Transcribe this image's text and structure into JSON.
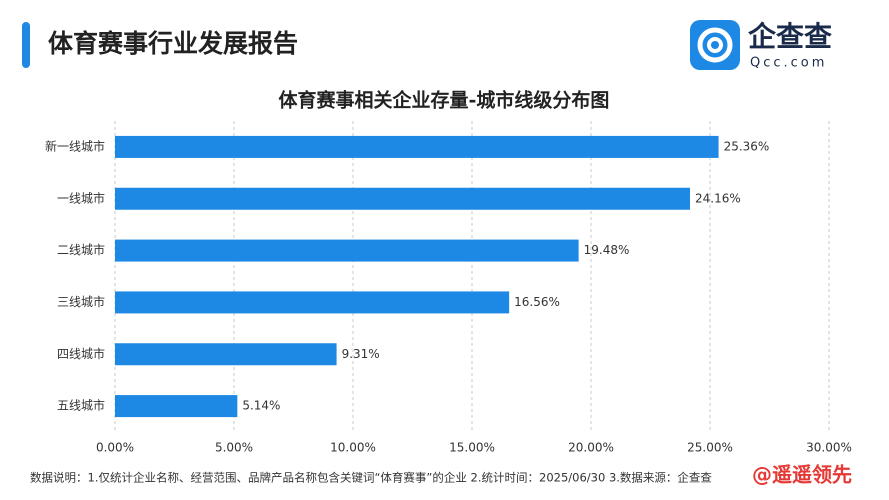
{
  "header": {
    "title": "体育赛事行业发展报告",
    "logo_text": "企查查",
    "logo_sub": "Qcc.com"
  },
  "chart_data": {
    "type": "bar",
    "orientation": "horizontal",
    "title": "体育赛事相关企业存量-城市线级分布图",
    "categories": [
      "新一线城市",
      "一线城市",
      "二线城市",
      "三线城市",
      "四线城市",
      "五线城市"
    ],
    "values": [
      25.36,
      24.16,
      19.48,
      16.56,
      9.31,
      5.14
    ],
    "value_labels": [
      "25.36%",
      "24.16%",
      "19.48%",
      "16.56%",
      "9.31%",
      "5.14%"
    ],
    "color": "#1e88e5",
    "xlim": [
      0,
      30
    ],
    "xticks": [
      {
        "value": 0,
        "label": "0.00%"
      },
      {
        "value": 5,
        "label": "5.00%"
      },
      {
        "value": 10,
        "label": "10.00%"
      },
      {
        "value": 15,
        "label": "15.00%"
      },
      {
        "value": 20,
        "label": "20.00%"
      },
      {
        "value": 25,
        "label": "25.00%"
      },
      {
        "value": 30,
        "label": "30.00%"
      }
    ],
    "grid": true
  },
  "footnote": "数据说明：1.仅统计企业名称、经营范围、品牌产品名称包含关键词“体育赛事”的企业   2.统计时间：2025/06/30   3.数据来源：企查查",
  "watermark": "@遥遥领先"
}
